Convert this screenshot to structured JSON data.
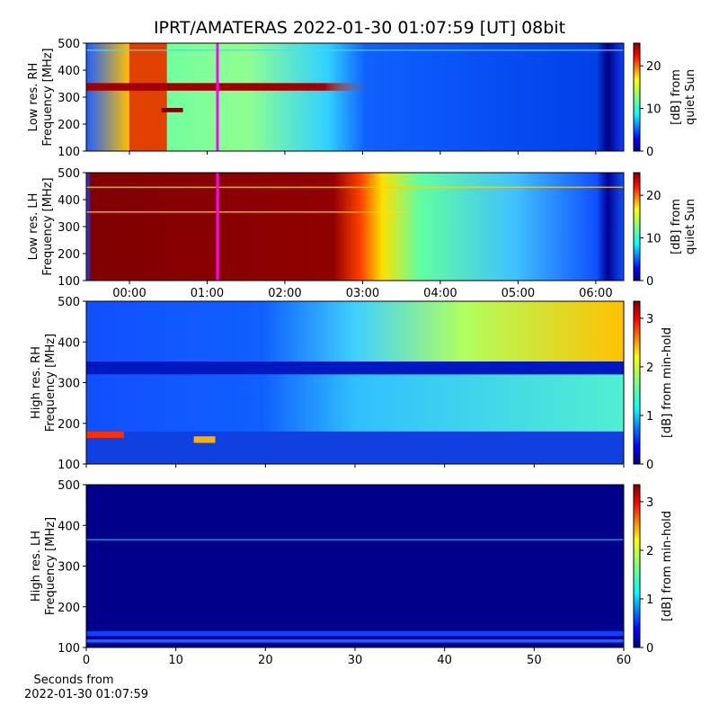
{
  "title": "IPRT/AMATERAS 2022-01-30 01:07:59 [UT]   08bit",
  "chart_data": [
    {
      "type": "heatmap",
      "ylabel": [
        "Low res. RH",
        "Frequency [MHz]"
      ],
      "ylim": [
        100,
        500
      ],
      "yticks": [
        100,
        200,
        300,
        400,
        500
      ],
      "xlim": [
        -0.555,
        6.36
      ],
      "marker": 1.1331,
      "colorbar": {
        "label": [
          "[dB] from",
          "quiet Sun"
        ],
        "lim": [
          0,
          25.3
        ],
        "ticks": [
          0,
          10,
          20
        ]
      }
    },
    {
      "type": "heatmap",
      "ylabel": [
        "Low res. LH",
        "Frequency [MHz]"
      ],
      "ylim": [
        100,
        500
      ],
      "yticks": [
        100,
        200,
        300,
        400,
        500
      ],
      "xlim": [
        -0.555,
        6.36
      ],
      "marker": 1.1331,
      "xticks": [
        {
          "value": 0,
          "label": "00:00"
        },
        {
          "value": 1,
          "label": "01:00"
        },
        {
          "value": 2,
          "label": "02:00"
        },
        {
          "value": 3,
          "label": "03:00"
        },
        {
          "value": 4,
          "label": "04:00"
        },
        {
          "value": 5,
          "label": "05:00"
        },
        {
          "value": 6,
          "label": "06:00"
        }
      ],
      "colorbar": {
        "label": [
          "[dB] from",
          "quiet Sun"
        ],
        "lim": [
          0,
          25.3
        ],
        "ticks": [
          0,
          10,
          20
        ]
      }
    },
    {
      "type": "heatmap",
      "ylabel": [
        "High res. RH",
        "Frequency [MHz]"
      ],
      "ylim": [
        100,
        500
      ],
      "yticks": [
        100,
        200,
        300,
        400,
        500
      ],
      "xlim": [
        0,
        60
      ],
      "colorbar": {
        "label": [
          "[dB] from min-hold"
        ],
        "lim": [
          0,
          3.35
        ],
        "ticks": [
          0,
          1,
          2,
          3
        ]
      }
    },
    {
      "type": "heatmap",
      "ylabel": [
        "High res. LH",
        "Frequency [MHz]"
      ],
      "ylim": [
        100,
        500
      ],
      "yticks": [
        100,
        200,
        300,
        400,
        500
      ],
      "xlim": [
        0,
        60
      ],
      "xticks": [
        0,
        10,
        20,
        30,
        40,
        50,
        60
      ],
      "xlabel": [
        "Seconds from",
        "2022-01-30 01:07:59"
      ],
      "colorbar": {
        "label": [
          "[dB] from min-hold"
        ],
        "lim": [
          0,
          3.35
        ],
        "ticks": [
          0,
          1,
          2,
          3
        ]
      }
    }
  ]
}
